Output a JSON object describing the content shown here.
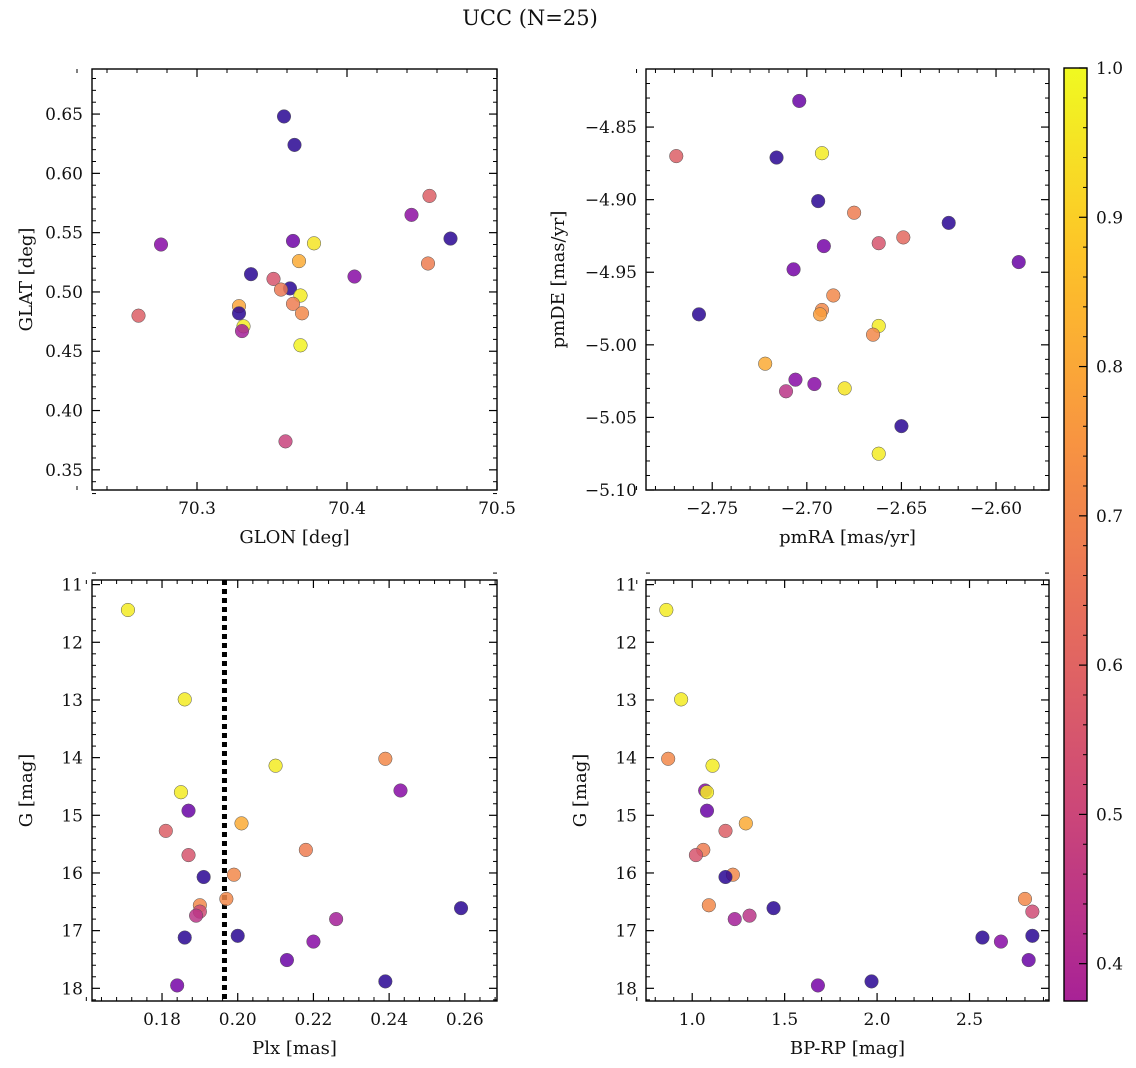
{
  "title": "UCC (N=25)",
  "colorbar": {
    "colormap": "plasma",
    "range": [
      0.375,
      1.0
    ],
    "ticks": [
      0.4,
      0.5,
      0.6,
      0.7,
      0.8,
      0.9,
      1.0
    ],
    "tick_labels": [
      "0.4",
      "0.5",
      "0.6",
      "0.7",
      "0.8",
      "0.9",
      "1.0"
    ]
  },
  "chart_data": [
    {
      "type": "scatter",
      "xlabel": "GLON [deg]",
      "ylabel": "GLAT [deg]",
      "xlim": [
        70.23,
        70.5
      ],
      "ylim": [
        0.333,
        0.688
      ],
      "xticks": [
        70.3,
        70.4,
        70.5
      ],
      "xtick_labels": [
        "70.3",
        "70.4",
        "70.5"
      ],
      "yticks": [
        0.35,
        0.4,
        0.45,
        0.5,
        0.55,
        0.6,
        0.65
      ],
      "ytick_labels": [
        "0.35",
        "0.40",
        "0.45",
        "0.50",
        "0.55",
        "0.60",
        "0.65"
      ],
      "y_inverted": false,
      "points": [
        {
          "x": 70.358,
          "y": 0.648,
          "c": 0.41
        },
        {
          "x": 70.365,
          "y": 0.624,
          "c": 0.41
        },
        {
          "x": 70.455,
          "y": 0.581,
          "c": 0.74
        },
        {
          "x": 70.443,
          "y": 0.565,
          "c": 0.56
        },
        {
          "x": 70.469,
          "y": 0.545,
          "c": 0.41
        },
        {
          "x": 70.276,
          "y": 0.54,
          "c": 0.55
        },
        {
          "x": 70.364,
          "y": 0.543,
          "c": 0.51
        },
        {
          "x": 70.378,
          "y": 0.541,
          "c": 0.97
        },
        {
          "x": 70.368,
          "y": 0.526,
          "c": 0.88
        },
        {
          "x": 70.454,
          "y": 0.524,
          "c": 0.8
        },
        {
          "x": 70.336,
          "y": 0.515,
          "c": 0.41
        },
        {
          "x": 70.405,
          "y": 0.513,
          "c": 0.55
        },
        {
          "x": 70.351,
          "y": 0.511,
          "c": 0.72
        },
        {
          "x": 70.362,
          "y": 0.503,
          "c": 0.41
        },
        {
          "x": 70.356,
          "y": 0.502,
          "c": 0.79
        },
        {
          "x": 70.369,
          "y": 0.497,
          "c": 0.98
        },
        {
          "x": 70.364,
          "y": 0.49,
          "c": 0.8
        },
        {
          "x": 70.328,
          "y": 0.488,
          "c": 0.87
        },
        {
          "x": 70.37,
          "y": 0.482,
          "c": 0.82
        },
        {
          "x": 70.328,
          "y": 0.482,
          "c": 0.41
        },
        {
          "x": 70.261,
          "y": 0.48,
          "c": 0.74
        },
        {
          "x": 70.331,
          "y": 0.471,
          "c": 0.98
        },
        {
          "x": 70.33,
          "y": 0.467,
          "c": 0.6
        },
        {
          "x": 70.369,
          "y": 0.455,
          "c": 0.99
        },
        {
          "x": 70.359,
          "y": 0.374,
          "c": 0.68
        }
      ]
    },
    {
      "type": "scatter",
      "xlabel": "pmRA [mas/yr]",
      "ylabel": "pmDE [mas/yr]",
      "xlim": [
        -2.785,
        -2.572
      ],
      "ylim": [
        -5.1,
        -4.81
      ],
      "xticks": [
        -2.75,
        -2.7,
        -2.65,
        -2.6
      ],
      "xtick_labels": [
        "−2.75",
        "−2.70",
        "−2.65",
        "−2.60"
      ],
      "yticks": [
        -5.1,
        -5.05,
        -5.0,
        -4.95,
        -4.9,
        -4.85
      ],
      "ytick_labels": [
        "−5.10",
        "−5.05",
        "−5.00",
        "−4.95",
        "−4.90",
        "−4.85"
      ],
      "y_inverted": false,
      "points": [
        {
          "x": -2.704,
          "y": -4.832,
          "c": 0.5
        },
        {
          "x": -2.769,
          "y": -4.87,
          "c": 0.74
        },
        {
          "x": -2.716,
          "y": -4.871,
          "c": 0.41
        },
        {
          "x": -2.692,
          "y": -4.868,
          "c": 0.98
        },
        {
          "x": -2.694,
          "y": -4.901,
          "c": 0.41
        },
        {
          "x": -2.675,
          "y": -4.909,
          "c": 0.8
        },
        {
          "x": -2.625,
          "y": -4.916,
          "c": 0.41
        },
        {
          "x": -2.649,
          "y": -4.926,
          "c": 0.76
        },
        {
          "x": -2.662,
          "y": -4.93,
          "c": 0.72
        },
        {
          "x": -2.691,
          "y": -4.932,
          "c": 0.52
        },
        {
          "x": -2.588,
          "y": -4.943,
          "c": 0.5
        },
        {
          "x": -2.707,
          "y": -4.948,
          "c": 0.52
        },
        {
          "x": -2.686,
          "y": -4.966,
          "c": 0.82
        },
        {
          "x": -2.692,
          "y": -4.976,
          "c": 0.82
        },
        {
          "x": -2.693,
          "y": -4.979,
          "c": 0.86
        },
        {
          "x": -2.757,
          "y": -4.979,
          "c": 0.41
        },
        {
          "x": -2.662,
          "y": -4.987,
          "c": 0.98
        },
        {
          "x": -2.665,
          "y": -4.993,
          "c": 0.82
        },
        {
          "x": -2.722,
          "y": -5.013,
          "c": 0.88
        },
        {
          "x": -2.706,
          "y": -5.024,
          "c": 0.55
        },
        {
          "x": -2.696,
          "y": -5.027,
          "c": 0.55
        },
        {
          "x": -2.711,
          "y": -5.032,
          "c": 0.65
        },
        {
          "x": -2.68,
          "y": -5.03,
          "c": 0.97
        },
        {
          "x": -2.65,
          "y": -5.056,
          "c": 0.41
        },
        {
          "x": -2.662,
          "y": -5.075,
          "c": 0.98
        }
      ]
    },
    {
      "type": "scatter",
      "xlabel": "Plx [mas]",
      "ylabel": "G [mag]",
      "xlim": [
        0.1615,
        0.2685
      ],
      "ylim": [
        18.22,
        10.92
      ],
      "xticks": [
        0.18,
        0.2,
        0.22,
        0.24,
        0.26
      ],
      "xtick_labels": [
        "0.18",
        "0.20",
        "0.22",
        "0.24",
        "0.26"
      ],
      "yticks": [
        11,
        12,
        13,
        14,
        15,
        16,
        17,
        18
      ],
      "ytick_labels": [
        "11",
        "12",
        "13",
        "14",
        "15",
        "16",
        "17",
        "18"
      ],
      "y_inverted": true,
      "vline": {
        "x": 0.1965,
        "style": "dotted",
        "color": "#000000"
      },
      "points": [
        {
          "x": 0.171,
          "y": 11.44,
          "c": 0.98
        },
        {
          "x": 0.186,
          "y": 12.99,
          "c": 0.98
        },
        {
          "x": 0.239,
          "y": 14.02,
          "c": 0.82
        },
        {
          "x": 0.21,
          "y": 14.14,
          "c": 0.98
        },
        {
          "x": 0.243,
          "y": 14.57,
          "c": 0.55
        },
        {
          "x": 0.185,
          "y": 14.6,
          "c": 0.98
        },
        {
          "x": 0.187,
          "y": 14.92,
          "c": 0.5
        },
        {
          "x": 0.201,
          "y": 15.14,
          "c": 0.88
        },
        {
          "x": 0.181,
          "y": 15.27,
          "c": 0.74
        },
        {
          "x": 0.218,
          "y": 15.6,
          "c": 0.8
        },
        {
          "x": 0.187,
          "y": 15.69,
          "c": 0.72
        },
        {
          "x": 0.199,
          "y": 16.03,
          "c": 0.82
        },
        {
          "x": 0.191,
          "y": 16.07,
          "c": 0.41
        },
        {
          "x": 0.197,
          "y": 16.45,
          "c": 0.82
        },
        {
          "x": 0.19,
          "y": 16.56,
          "c": 0.82
        },
        {
          "x": 0.259,
          "y": 16.61,
          "c": 0.41
        },
        {
          "x": 0.19,
          "y": 16.67,
          "c": 0.7
        },
        {
          "x": 0.189,
          "y": 16.74,
          "c": 0.65
        },
        {
          "x": 0.226,
          "y": 16.8,
          "c": 0.6
        },
        {
          "x": 0.2,
          "y": 17.09,
          "c": 0.41
        },
        {
          "x": 0.186,
          "y": 17.12,
          "c": 0.41
        },
        {
          "x": 0.22,
          "y": 17.19,
          "c": 0.55
        },
        {
          "x": 0.213,
          "y": 17.51,
          "c": 0.5
        },
        {
          "x": 0.239,
          "y": 17.88,
          "c": 0.41
        },
        {
          "x": 0.184,
          "y": 17.95,
          "c": 0.52
        }
      ]
    },
    {
      "type": "scatter",
      "xlabel": "BP-RP [mag]",
      "ylabel": "G [mag]",
      "xlim": [
        0.75,
        2.93
      ],
      "ylim": [
        18.22,
        10.92
      ],
      "xticks": [
        1.0,
        1.5,
        2.0,
        2.5
      ],
      "xtick_labels": [
        "1.0",
        "1.5",
        "2.0",
        "2.5"
      ],
      "yticks": [
        11,
        12,
        13,
        14,
        15,
        16,
        17,
        18
      ],
      "ytick_labels": [
        "11",
        "12",
        "13",
        "14",
        "15",
        "16",
        "17",
        "18"
      ],
      "y_inverted": true,
      "points": [
        {
          "x": 0.86,
          "y": 11.44,
          "c": 0.98
        },
        {
          "x": 0.94,
          "y": 12.99,
          "c": 0.98
        },
        {
          "x": 0.87,
          "y": 14.02,
          "c": 0.82
        },
        {
          "x": 1.11,
          "y": 14.14,
          "c": 0.98
        },
        {
          "x": 1.07,
          "y": 14.57,
          "c": 0.55
        },
        {
          "x": 1.08,
          "y": 14.6,
          "c": 0.98
        },
        {
          "x": 1.08,
          "y": 14.92,
          "c": 0.5
        },
        {
          "x": 1.29,
          "y": 15.14,
          "c": 0.88
        },
        {
          "x": 1.18,
          "y": 15.27,
          "c": 0.74
        },
        {
          "x": 1.06,
          "y": 15.6,
          "c": 0.8
        },
        {
          "x": 1.02,
          "y": 15.69,
          "c": 0.72
        },
        {
          "x": 1.22,
          "y": 16.03,
          "c": 0.82
        },
        {
          "x": 1.18,
          "y": 16.07,
          "c": 0.41
        },
        {
          "x": 2.8,
          "y": 16.45,
          "c": 0.82
        },
        {
          "x": 1.09,
          "y": 16.56,
          "c": 0.82
        },
        {
          "x": 1.44,
          "y": 16.61,
          "c": 0.41
        },
        {
          "x": 2.84,
          "y": 16.67,
          "c": 0.7
        },
        {
          "x": 1.31,
          "y": 16.74,
          "c": 0.65
        },
        {
          "x": 1.23,
          "y": 16.8,
          "c": 0.6
        },
        {
          "x": 2.84,
          "y": 17.09,
          "c": 0.41
        },
        {
          "x": 2.57,
          "y": 17.12,
          "c": 0.41
        },
        {
          "x": 2.67,
          "y": 17.19,
          "c": 0.55
        },
        {
          "x": 2.82,
          "y": 17.51,
          "c": 0.5
        },
        {
          "x": 1.97,
          "y": 17.88,
          "c": 0.41
        },
        {
          "x": 1.68,
          "y": 17.95,
          "c": 0.52
        }
      ]
    }
  ]
}
